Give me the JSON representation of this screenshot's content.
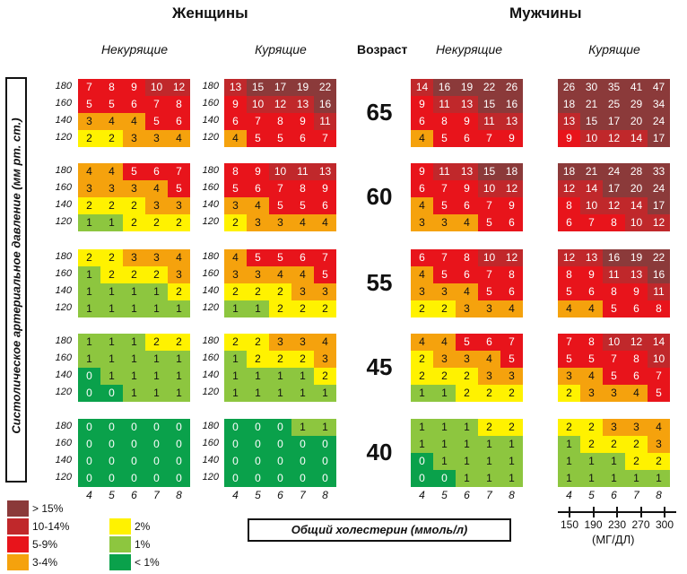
{
  "labels": {
    "women": "Женщины",
    "men": "Мужчины",
    "nonsmoking": "Некурящие",
    "smoking": "Курящие",
    "age": "Возраст",
    "ylabel": "Систолическое артериальное давление (мм рт. ст.)",
    "xlabel": "Общий холестерин (ммоль/л)",
    "mg_unit": "(МГ/ДЛ)"
  },
  "mg_ticks": [
    "150",
    "190",
    "230",
    "270",
    "300"
  ],
  "legend": [
    {
      "label": "> 15%",
      "color": "#8B3A3A"
    },
    {
      "label": "10-14%",
      "color": "#C0282B"
    },
    {
      "label": "5-9%",
      "color": "#E8141B"
    },
    {
      "label": "3-4%",
      "color": "#F5A20D"
    },
    {
      "label": "2%",
      "color": "#FFF200"
    },
    {
      "label": "1%",
      "color": "#8DC63F"
    },
    {
      "label": "< 1%",
      "color": "#0AA14B"
    }
  ],
  "chart_data": {
    "type": "heatmap",
    "title": "",
    "xlabel": "Общий холестерин (ммоль/л)",
    "ylabel": "Систолическое артериальное давление (мм рт. ст.)",
    "x": [
      "4",
      "5",
      "6",
      "7",
      "8"
    ],
    "y": [
      "180",
      "160",
      "140",
      "120"
    ],
    "ages": [
      "65",
      "60",
      "55",
      "45",
      "40"
    ],
    "groups": [
      "women_nonsmoking",
      "women_smoking",
      "men_nonsmoking",
      "men_smoking"
    ],
    "values": {
      "65": {
        "women_nonsmoking": [
          [
            7,
            8,
            9,
            10,
            12
          ],
          [
            5,
            5,
            6,
            7,
            8
          ],
          [
            3,
            4,
            4,
            5,
            6
          ],
          [
            2,
            2,
            3,
            3,
            4
          ]
        ],
        "women_smoking": [
          [
            13,
            15,
            17,
            19,
            22
          ],
          [
            9,
            10,
            12,
            13,
            16
          ],
          [
            6,
            7,
            8,
            9,
            11
          ],
          [
            4,
            5,
            5,
            6,
            7
          ]
        ],
        "men_nonsmoking": [
          [
            14,
            16,
            19,
            22,
            26
          ],
          [
            9,
            11,
            13,
            15,
            16
          ],
          [
            6,
            8,
            9,
            11,
            13
          ],
          [
            4,
            5,
            6,
            7,
            9
          ]
        ],
        "men_smoking": [
          [
            26,
            30,
            35,
            41,
            47
          ],
          [
            18,
            21,
            25,
            29,
            34
          ],
          [
            13,
            15,
            17,
            20,
            24
          ],
          [
            9,
            10,
            12,
            14,
            17
          ]
        ]
      },
      "60": {
        "women_nonsmoking": [
          [
            4,
            4,
            5,
            6,
            7
          ],
          [
            3,
            3,
            3,
            4,
            5
          ],
          [
            2,
            2,
            2,
            3,
            3
          ],
          [
            1,
            1,
            2,
            2,
            2
          ]
        ],
        "women_smoking": [
          [
            8,
            9,
            10,
            11,
            13
          ],
          [
            5,
            6,
            7,
            8,
            9
          ],
          [
            3,
            4,
            5,
            5,
            6
          ],
          [
            2,
            3,
            3,
            4,
            4
          ]
        ],
        "men_nonsmoking": [
          [
            9,
            11,
            13,
            15,
            18
          ],
          [
            6,
            7,
            9,
            10,
            12
          ],
          [
            4,
            5,
            6,
            7,
            9
          ],
          [
            3,
            3,
            4,
            5,
            6
          ]
        ],
        "men_smoking": [
          [
            18,
            21,
            24,
            28,
            33
          ],
          [
            12,
            14,
            17,
            20,
            24
          ],
          [
            8,
            10,
            12,
            14,
            17
          ],
          [
            6,
            7,
            8,
            10,
            12
          ]
        ]
      },
      "55": {
        "women_nonsmoking": [
          [
            2,
            2,
            3,
            3,
            4
          ],
          [
            1,
            2,
            2,
            2,
            3
          ],
          [
            1,
            1,
            1,
            1,
            2
          ],
          [
            1,
            1,
            1,
            1,
            1
          ]
        ],
        "women_smoking": [
          [
            4,
            5,
            5,
            6,
            7
          ],
          [
            3,
            3,
            4,
            4,
            5
          ],
          [
            2,
            2,
            2,
            3,
            3
          ],
          [
            1,
            1,
            2,
            2,
            2
          ]
        ],
        "men_nonsmoking": [
          [
            6,
            7,
            8,
            10,
            12
          ],
          [
            4,
            5,
            6,
            7,
            8
          ],
          [
            3,
            3,
            4,
            5,
            6
          ],
          [
            2,
            2,
            3,
            3,
            4
          ]
        ],
        "men_smoking": [
          [
            12,
            13,
            16,
            19,
            22
          ],
          [
            8,
            9,
            11,
            13,
            16
          ],
          [
            5,
            6,
            8,
            9,
            11
          ],
          [
            4,
            4,
            5,
            6,
            8
          ]
        ]
      },
      "45": {
        "women_nonsmoking": [
          [
            1,
            1,
            1,
            2,
            2
          ],
          [
            1,
            1,
            1,
            1,
            1
          ],
          [
            0,
            1,
            1,
            1,
            1
          ],
          [
            0,
            0,
            1,
            1,
            1
          ]
        ],
        "women_smoking": [
          [
            2,
            2,
            3,
            3,
            4
          ],
          [
            1,
            2,
            2,
            2,
            3
          ],
          [
            1,
            1,
            1,
            1,
            2
          ],
          [
            1,
            1,
            1,
            1,
            1
          ]
        ],
        "men_nonsmoking": [
          [
            4,
            4,
            5,
            6,
            7
          ],
          [
            2,
            3,
            3,
            4,
            5
          ],
          [
            2,
            2,
            2,
            3,
            3
          ],
          [
            1,
            1,
            2,
            2,
            2
          ]
        ],
        "men_smoking": [
          [
            7,
            8,
            10,
            12,
            14
          ],
          [
            5,
            5,
            7,
            8,
            10
          ],
          [
            3,
            4,
            5,
            6,
            7
          ],
          [
            2,
            3,
            3,
            4,
            5
          ]
        ]
      },
      "40": {
        "women_nonsmoking": [
          [
            0,
            0,
            0,
            0,
            0
          ],
          [
            0,
            0,
            0,
            0,
            0
          ],
          [
            0,
            0,
            0,
            0,
            0
          ],
          [
            0,
            0,
            0,
            0,
            0
          ]
        ],
        "women_smoking": [
          [
            0,
            0,
            0,
            1,
            1
          ],
          [
            0,
            0,
            0,
            0,
            0
          ],
          [
            0,
            0,
            0,
            0,
            0
          ],
          [
            0,
            0,
            0,
            0,
            0
          ]
        ],
        "men_nonsmoking": [
          [
            1,
            1,
            1,
            2,
            2
          ],
          [
            1,
            1,
            1,
            1,
            1
          ],
          [
            0,
            1,
            1,
            1,
            1
          ],
          [
            0,
            0,
            1,
            1,
            1
          ]
        ],
        "men_smoking": [
          [
            2,
            2,
            3,
            3,
            4
          ],
          [
            1,
            2,
            2,
            2,
            3
          ],
          [
            1,
            1,
            1,
            2,
            2
          ],
          [
            1,
            1,
            1,
            1,
            1
          ]
        ]
      }
    }
  }
}
